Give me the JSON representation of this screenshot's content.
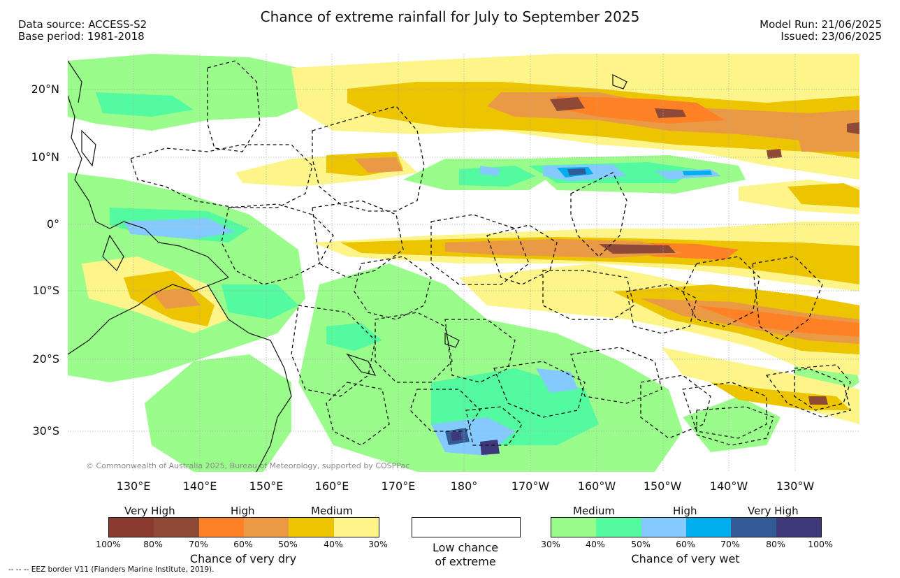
{
  "title": "Chance of extreme rainfall for July to September 2025",
  "meta": {
    "data_source": "Data source: ACCESS-S2",
    "base_period": "Base period: 1981-2018",
    "model_run": "Model Run: 21/06/2025",
    "issued": "Issued: 23/06/2025"
  },
  "axes": {
    "lat_labels": [
      "20°N",
      "10°N",
      "0°",
      "10°S",
      "20°S",
      "30°S"
    ],
    "lon_labels": [
      "130°E",
      "140°E",
      "150°E",
      "160°E",
      "170°E",
      "180°",
      "170°W",
      "160°W",
      "150°W",
      "140°W",
      "130°W"
    ]
  },
  "copyright": "© Commonwealth of Australia 2025, Bureau of Meteorology, supported by COSPPac",
  "legend": {
    "dry": {
      "levels": [
        "Very High",
        "High",
        "Medium"
      ],
      "ticks": [
        "100%",
        "80%",
        "70%",
        "60%",
        "50%",
        "40%",
        "30%"
      ],
      "caption": "Chance of very dry",
      "colors": [
        "#8b3a2f",
        "#8e4a36",
        "#ff8125",
        "#ea9a45",
        "#ecc400",
        "#fef58a"
      ]
    },
    "low": {
      "caption_line1": "Low chance",
      "caption_line2": "of extreme"
    },
    "wet": {
      "levels": [
        "Medium",
        "High",
        "Very High"
      ],
      "ticks": [
        "30%",
        "40%",
        "50%",
        "60%",
        "70%",
        "80%",
        "100%"
      ],
      "caption": "Chance of very wet",
      "colors": [
        "#9afc8a",
        "#54fa9f",
        "#85cafe",
        "#00aeee",
        "#335c96",
        "#3e3979"
      ]
    }
  },
  "footnote": "-- -- -- EEZ border V11 (Flanders Marine Institute, 2019)."
}
